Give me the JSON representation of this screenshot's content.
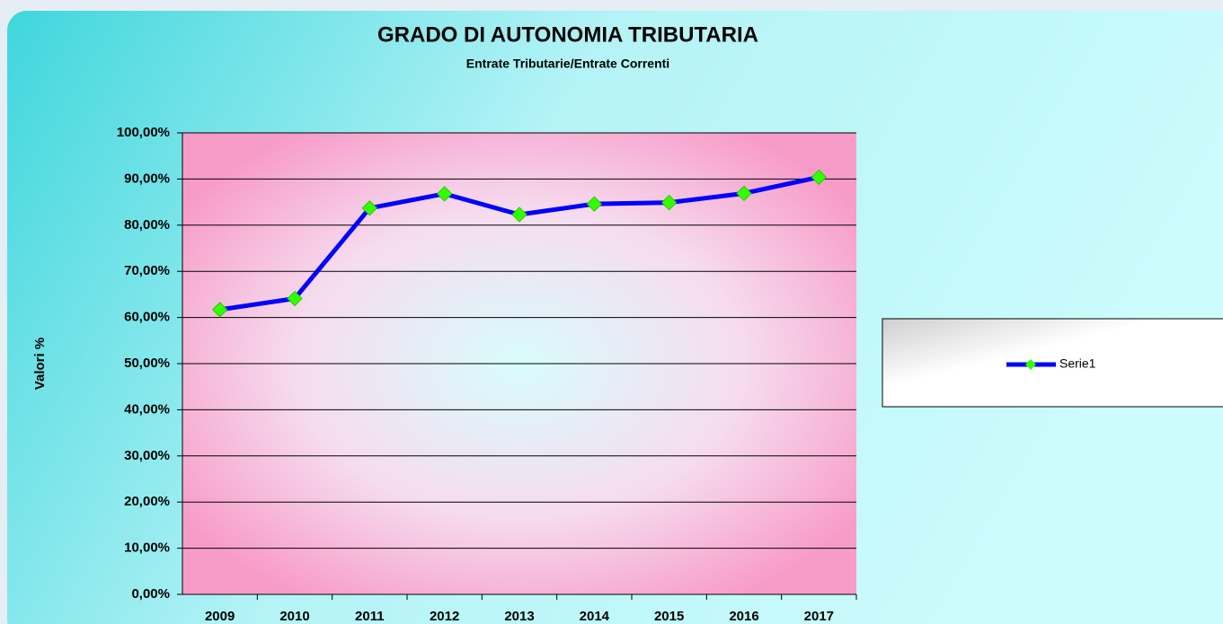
{
  "chart_data": {
    "type": "line",
    "title": "GRADO DI AUTONOMIA TRIBUTARIA",
    "subtitle": "Entrate Tributarie/Entrate  Correnti",
    "y_label": "Valori %",
    "categories": [
      "2009",
      "2010",
      "2011",
      "2012",
      "2013",
      "2014",
      "2015",
      "2016",
      "2017"
    ],
    "series": [
      {
        "name": "Serie1",
        "color": "#0000ff",
        "marker_color": "#33ff00",
        "values": [
          61.7,
          64.1,
          83.7,
          86.8,
          82.3,
          84.6,
          84.9,
          86.9,
          90.4
        ]
      }
    ],
    "ylim": [
      0,
      100
    ],
    "yticks": [
      {
        "value": 0,
        "label": "0,00%"
      },
      {
        "value": 10,
        "label": "10,00%"
      },
      {
        "value": 20,
        "label": "20,00%"
      },
      {
        "value": 30,
        "label": "30,00%"
      },
      {
        "value": 40,
        "label": "40,00%"
      },
      {
        "value": 50,
        "label": "50,00%"
      },
      {
        "value": 60,
        "label": "60,00%"
      },
      {
        "value": 70,
        "label": "70,00%"
      },
      {
        "value": 80,
        "label": "80,00%"
      },
      {
        "value": 90,
        "label": "90,00%"
      },
      {
        "value": 100,
        "label": "100,00%"
      }
    ],
    "grid": true,
    "legend": "right"
  }
}
